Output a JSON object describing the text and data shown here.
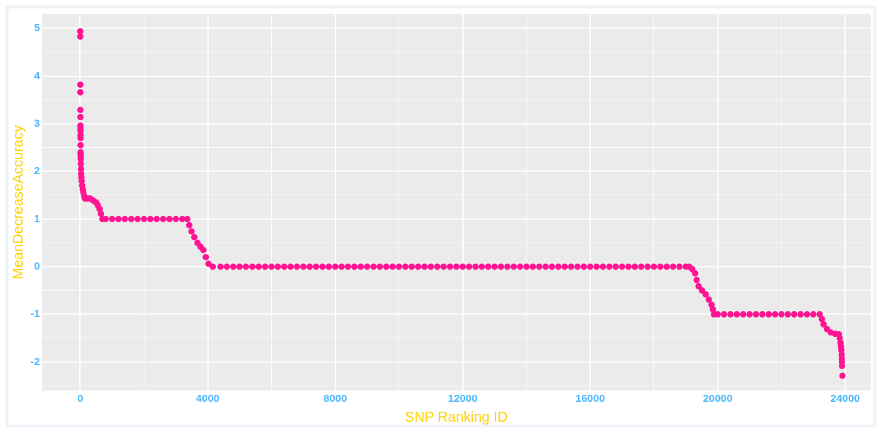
{
  "chart_data": {
    "type": "scatter",
    "xlabel": "SNP Ranking ID",
    "ylabel": "MeanDecreaseAccuracy",
    "xlim": [
      -1200,
      24800
    ],
    "ylim": [
      -2.6,
      5.3
    ],
    "xticks": [
      0,
      {
        "value": 2000,
        "label": null
      },
      4000,
      {
        "value": 6000,
        "label": null
      },
      8000,
      {
        "value": 10000,
        "label": null
      },
      12000,
      {
        "value": 14000,
        "label": null
      },
      16000,
      {
        "value": 18000,
        "label": null
      },
      20000,
      {
        "value": 22000,
        "label": null
      },
      24000
    ],
    "yticks": [
      {
        "value": -2.5,
        "label": null
      },
      -2,
      {
        "value": -1.5,
        "label": null
      },
      -1,
      {
        "value": -0.5,
        "label": null
      },
      0,
      {
        "value": 0.5,
        "label": null
      },
      1,
      {
        "value": 1.5,
        "label": null
      },
      2,
      {
        "value": 2.5,
        "label": null
      },
      3,
      {
        "value": 3.5,
        "label": null
      },
      4,
      {
        "value": 4.5,
        "label": null
      },
      5
    ],
    "grid": true,
    "legend": false,
    "marker": "circle",
    "series": [
      {
        "color": "#ff1493",
        "x": [
          0,
          1,
          2,
          3,
          4,
          5,
          6,
          7,
          8,
          9,
          10,
          11,
          12,
          13,
          14,
          15,
          18,
          22,
          28,
          35,
          45,
          60,
          80,
          100,
          125,
          150,
          230,
          310,
          400,
          495,
          550,
          606,
          650,
          695,
          800,
          1000,
          1200,
          1400,
          1600,
          1800,
          2000,
          2200,
          2400,
          2600,
          2800,
          3000,
          3200,
          3358,
          3420,
          3492,
          3580,
          3678,
          3770,
          3862,
          3940,
          4025,
          4158,
          4400,
          4600,
          4800,
          5000,
          5200,
          5400,
          5600,
          5800,
          6000,
          6200,
          6400,
          6600,
          6800,
          7000,
          7200,
          7400,
          7600,
          7800,
          8000,
          8200,
          8400,
          8600,
          8800,
          9000,
          9200,
          9400,
          9600,
          9800,
          10000,
          10200,
          10400,
          10600,
          10800,
          11000,
          11200,
          11400,
          11600,
          11800,
          12000,
          12200,
          12400,
          12600,
          12800,
          13000,
          13200,
          13400,
          13600,
          13800,
          14000,
          14200,
          14400,
          14600,
          14800,
          15000,
          15200,
          15400,
          15600,
          15800,
          16000,
          16200,
          16400,
          16600,
          16800,
          17000,
          17200,
          17400,
          17600,
          17800,
          18000,
          18200,
          18400,
          18600,
          18800,
          19000,
          19105,
          19200,
          19290,
          19340,
          19401,
          19510,
          19623,
          19720,
          19807,
          19850,
          19882,
          20000,
          20200,
          20400,
          20600,
          20800,
          21000,
          21200,
          21400,
          21600,
          21800,
          22000,
          22200,
          22400,
          22600,
          22800,
          23000,
          23200,
          23270,
          23323,
          23430,
          23545,
          23680,
          23802,
          23830,
          23855,
          23870,
          23880,
          23892,
          23895,
          23897,
          23900,
          23914
        ],
        "values": [
          4.94,
          4.83,
          3.82,
          3.66,
          3.29,
          3.14,
          2.96,
          2.91,
          2.85,
          2.76,
          2.7,
          2.55,
          2.4,
          2.37,
          2.31,
          2.26,
          2.16,
          2.05,
          1.95,
          1.88,
          1.8,
          1.7,
          1.62,
          1.55,
          1.48,
          1.43,
          1.43,
          1.43,
          1.39,
          1.35,
          1.29,
          1.21,
          1.11,
          1,
          1,
          1,
          1,
          1,
          1,
          1,
          1,
          1,
          1,
          1,
          1,
          1,
          1,
          1,
          0.87,
          0.74,
          0.62,
          0.5,
          0.42,
          0.35,
          0.2,
          0.06,
          0,
          0,
          0,
          0,
          0,
          0,
          0,
          0,
          0,
          0,
          0,
          0,
          0,
          0,
          0,
          0,
          0,
          0,
          0,
          0,
          0,
          0,
          0,
          0,
          0,
          0,
          0,
          0,
          0,
          0,
          0,
          0,
          0,
          0,
          0,
          0,
          0,
          0,
          0,
          0,
          0,
          0,
          0,
          0,
          0,
          0,
          0,
          0,
          0,
          0,
          0,
          0,
          0,
          0,
          0,
          0,
          0,
          0,
          0,
          0,
          0,
          0,
          0,
          0,
          0,
          0,
          0,
          0,
          0,
          0,
          0,
          0,
          0,
          0,
          0,
          0,
          -0.05,
          -0.14,
          -0.28,
          -0.41,
          -0.5,
          -0.58,
          -0.69,
          -0.8,
          -0.9,
          -1,
          -1,
          -1,
          -1,
          -1,
          -1,
          -1,
          -1,
          -1,
          -1,
          -1,
          -1,
          -1,
          -1,
          -1,
          -1,
          -1,
          -1,
          -1.1,
          -1.21,
          -1.31,
          -1.38,
          -1.41,
          -1.42,
          -1.5,
          -1.6,
          -1.68,
          -1.75,
          -1.85,
          -1.93,
          -2,
          -2.08,
          -2.29
        ]
      }
    ]
  }
}
